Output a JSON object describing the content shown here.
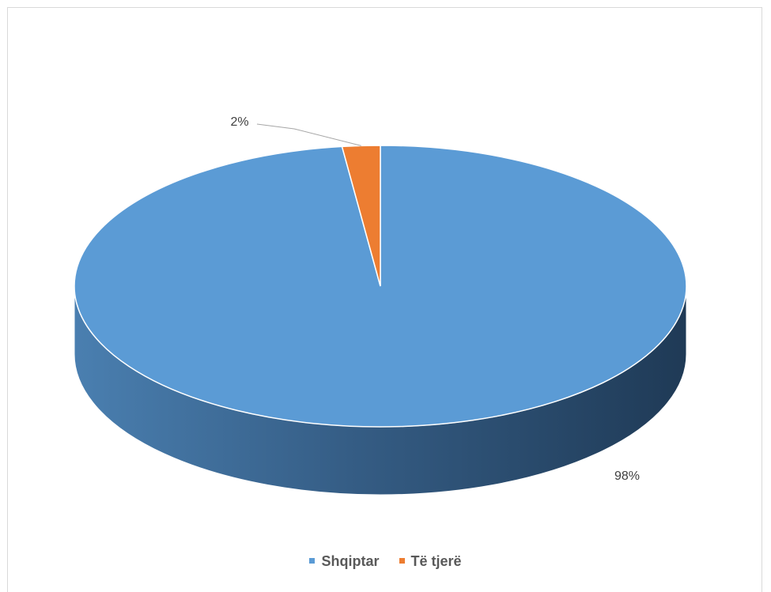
{
  "chart_data": {
    "type": "pie",
    "style": "3d",
    "slices": [
      {
        "name": "Shqiptar",
        "value": 98,
        "label": "98%",
        "color": "#5b9bd5"
      },
      {
        "name": "Të tjerë",
        "value": 2,
        "label": "2%",
        "color": "#ed7d31"
      }
    ],
    "legend": {
      "position": "bottom"
    }
  }
}
